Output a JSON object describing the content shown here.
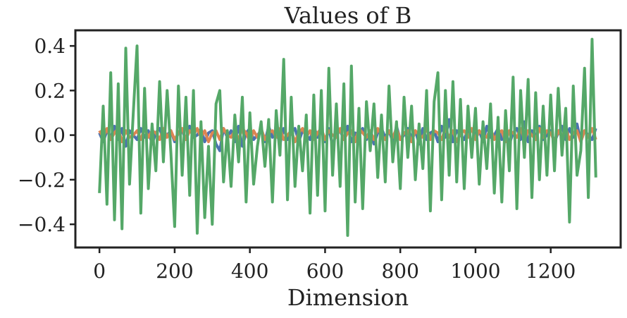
{
  "chart_data": {
    "type": "line",
    "title": "Values of B",
    "xlabel": "Dimension",
    "x": [
      0,
      10,
      20,
      30,
      40,
      50,
      60,
      70,
      80,
      90,
      100,
      110,
      120,
      130,
      140,
      150,
      160,
      170,
      180,
      190,
      200,
      210,
      220,
      230,
      240,
      250,
      260,
      270,
      280,
      290,
      300,
      310,
      320,
      330,
      340,
      350,
      360,
      370,
      380,
      390,
      400,
      410,
      420,
      430,
      440,
      450,
      460,
      470,
      480,
      490,
      500,
      510,
      520,
      530,
      540,
      550,
      560,
      570,
      580,
      590,
      600,
      610,
      620,
      630,
      640,
      650,
      660,
      670,
      680,
      690,
      700,
      710,
      720,
      730,
      740,
      750,
      760,
      770,
      780,
      790,
      800,
      810,
      820,
      830,
      840,
      850,
      860,
      870,
      880,
      890,
      900,
      910,
      920,
      930,
      940,
      950,
      960,
      970,
      980,
      990,
      1000,
      1010,
      1020,
      1030,
      1040,
      1050,
      1060,
      1070,
      1080,
      1090,
      1100,
      1110,
      1120,
      1130,
      1140,
      1150,
      1160,
      1170,
      1180,
      1190,
      1200,
      1210,
      1220,
      1230,
      1240,
      1250,
      1260,
      1270,
      1280,
      1290,
      1300,
      1310,
      1320
    ],
    "series": [
      {
        "color": "#4c72b0",
        "values": [
          0.01,
          -0.03,
          0.02,
          -0.01,
          0.04,
          -0.02,
          0.03,
          -0.05,
          0.02,
          0.0,
          -0.02,
          0.03,
          -0.01,
          0.02,
          -0.04,
          0.01,
          0.03,
          -0.02,
          0.0,
          0.02,
          -0.03,
          0.01,
          0.02,
          -0.02,
          0.04,
          -0.01,
          0.0,
          0.03,
          -0.03,
          0.01,
          0.02,
          -0.04,
          -0.07,
          0.03,
          -0.01,
          0.02,
          -0.03,
          0.04,
          -0.05,
          0.01,
          0.03,
          -0.02,
          0.0,
          0.02,
          -0.03,
          0.04,
          -0.01,
          0.02,
          -0.04,
          0.03,
          -0.02,
          0.01,
          0.03,
          -0.03,
          0.02,
          0.0,
          -0.02,
          0.04,
          -0.01,
          0.02,
          -0.03,
          0.03,
          -0.05,
          0.01,
          0.02,
          -0.02,
          0.04,
          -0.03,
          0.01,
          0.0,
          0.03,
          -0.02,
          0.02,
          -0.04,
          0.01,
          0.03,
          -0.01,
          0.02,
          -0.03,
          0.04,
          -0.02,
          0.0,
          0.03,
          -0.01,
          0.02,
          -0.04,
          0.03,
          -0.02,
          0.01,
          0.02,
          -0.03,
          0.04,
          -0.01,
          0.07,
          -0.03,
          0.02,
          0.0,
          -0.02,
          0.03,
          -0.04,
          0.01,
          0.02,
          -0.03,
          0.04,
          -0.01,
          0.0,
          0.03,
          -0.02,
          0.02,
          -0.04,
          0.01,
          0.03,
          -0.02,
          0.06,
          -0.03,
          0.02,
          -0.01,
          0.04,
          -0.02,
          0.0,
          0.02,
          -0.03,
          0.01,
          0.04,
          -0.02,
          0.03,
          -0.01,
          0.05,
          -0.03,
          0.02,
          0.0,
          -0.02,
          0.03
        ]
      },
      {
        "color": "#dd8452",
        "values": [
          0.02,
          -0.01,
          0.03,
          -0.02,
          0.01,
          0.03,
          -0.03,
          0.02,
          -0.01,
          0.0,
          0.02,
          -0.02,
          0.03,
          -0.01,
          0.02,
          0.01,
          -0.02,
          0.03,
          -0.01,
          0.02,
          -0.02,
          0.01,
          0.03,
          -0.02,
          0.02,
          0.0,
          0.03,
          -0.01,
          0.02,
          -0.03,
          0.01,
          0.02,
          -0.02,
          0.03,
          0.0,
          -0.01,
          0.02,
          -0.02,
          0.03,
          0.01,
          -0.03,
          0.02,
          -0.01,
          0.03,
          -0.02,
          0.01,
          0.02,
          -0.01,
          0.03,
          -0.02,
          0.0,
          0.02,
          -0.03,
          0.01,
          0.03,
          -0.01,
          0.02,
          -0.02,
          0.01,
          0.03,
          -0.02,
          0.02,
          0.0,
          -0.01,
          0.03,
          -0.02,
          0.01,
          0.02,
          -0.03,
          0.03,
          0.01,
          -0.01,
          0.02,
          -0.02,
          0.03,
          0.0,
          -0.02,
          0.02,
          -0.01,
          0.03,
          -0.02,
          0.01,
          0.02,
          -0.03,
          0.02,
          0.0,
          -0.01,
          0.03,
          -0.02,
          0.02,
          0.01,
          -0.02,
          0.03,
          -0.01,
          0.02,
          -0.03,
          0.01,
          0.02,
          -0.01,
          0.03,
          -0.02,
          0.02,
          0.0,
          -0.01,
          0.03,
          -0.02,
          0.01,
          0.02,
          -0.03,
          0.02,
          0.01,
          -0.01,
          0.03,
          -0.02,
          0.02,
          0.0,
          -0.02,
          0.03,
          -0.01,
          0.02,
          0.01,
          -0.03,
          0.02,
          -0.01,
          0.03,
          -0.02,
          0.01,
          0.02,
          -0.03,
          0.02,
          -0.01,
          0.03,
          -0.02
        ]
      },
      {
        "color": "#55a868",
        "values": [
          -0.26,
          0.13,
          -0.31,
          0.28,
          -0.38,
          0.23,
          -0.42,
          0.39,
          -0.22,
          0.1,
          0.4,
          -0.35,
          0.21,
          -0.24,
          0.05,
          -0.16,
          0.24,
          -0.12,
          0.2,
          -0.08,
          -0.41,
          0.22,
          -0.18,
          0.17,
          -0.27,
          0.2,
          -0.44,
          0.06,
          -0.37,
          -0.05,
          -0.4,
          0.14,
          0.2,
          -0.21,
          0.02,
          -0.23,
          0.09,
          -0.12,
          0.17,
          -0.3,
          0.1,
          -0.22,
          -0.05,
          0.06,
          -0.14,
          0.07,
          -0.3,
          0.11,
          -0.09,
          0.34,
          -0.29,
          0.17,
          -0.23,
          0.04,
          -0.16,
          0.09,
          -0.35,
          0.18,
          -0.27,
          0.2,
          -0.34,
          0.3,
          -0.18,
          0.14,
          -0.23,
          0.23,
          -0.45,
          0.31,
          -0.3,
          0.12,
          -0.33,
          0.15,
          -0.07,
          0.14,
          -0.19,
          0.09,
          -0.21,
          0.22,
          -0.12,
          0.06,
          -0.24,
          0.17,
          -0.1,
          0.13,
          -0.2,
          0.05,
          -0.15,
          0.2,
          -0.34,
          0.15,
          0.28,
          -0.29,
          0.2,
          -0.18,
          0.24,
          -0.21,
          0.16,
          -0.24,
          0.13,
          -0.1,
          0.12,
          -0.22,
          0.06,
          -0.15,
          0.14,
          -0.26,
          0.08,
          -0.3,
          0.11,
          -0.16,
          0.26,
          -0.33,
          0.2,
          -0.1,
          0.25,
          -0.28,
          0.19,
          -0.2,
          0.13,
          -0.18,
          0.18,
          -0.16,
          0.21,
          -0.09,
          0.12,
          -0.39,
          0.22,
          -0.18,
          -0.07,
          0.3,
          -0.28,
          0.43,
          -0.19
        ]
      }
    ],
    "xlim": [
      -64,
      1386
    ],
    "ylim": [
      -0.504,
      0.47
    ],
    "xticks": [
      0,
      200,
      400,
      600,
      800,
      1000,
      1200
    ],
    "yticks": [
      {
        "value": -0.4,
        "label": "−0.4"
      },
      {
        "value": -0.2,
        "label": "−0.2"
      },
      {
        "value": 0,
        "label": "0.0"
      },
      0.2,
      0.4
    ]
  }
}
